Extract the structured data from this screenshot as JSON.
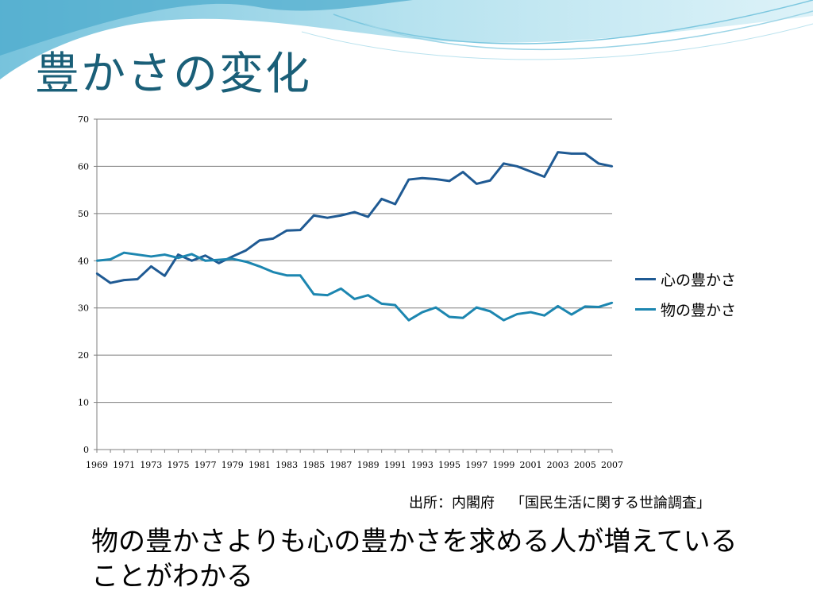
{
  "slide": {
    "title": "豊かさの変化",
    "source_prefix": "出所：内閣府",
    "source_survey": "「国民生活に関する世論調査」",
    "conclusion": "物の豊かさよりも心の豊かさを求める人が増えていることがわかる"
  },
  "colors": {
    "title": "#1a5f78",
    "series_heart": "#1f5a93",
    "series_material": "#1c86b0",
    "gridline": "#7f7f7f"
  },
  "chart_data": {
    "type": "line",
    "x": [
      1969,
      1970,
      1971,
      1972,
      1973,
      1974,
      1975,
      1976,
      1977,
      1978,
      1979,
      1980,
      1981,
      1982,
      1983,
      1984,
      1985,
      1986,
      1987,
      1988,
      1989,
      1990,
      1991,
      1992,
      1993,
      1994,
      1995,
      1996,
      1997,
      1998,
      1999,
      2000,
      2001,
      2002,
      2003,
      2004,
      2005,
      2006,
      2007
    ],
    "x_tick_labels": [
      "1969",
      "1971",
      "1973",
      "1975",
      "1977",
      "1979",
      "1981",
      "1983",
      "1985",
      "1987",
      "1989",
      "1991",
      "1993",
      "1995",
      "1997",
      "1999",
      "2001",
      "2003",
      "2005",
      "2007"
    ],
    "ylim": [
      0,
      70
    ],
    "y_ticks": [
      0,
      10,
      20,
      30,
      40,
      50,
      60,
      70
    ],
    "grid": true,
    "legend_position": "right",
    "series": [
      {
        "name": "心の豊かさ",
        "color": "#1f5a93",
        "values": [
          37.3,
          35.3,
          35.9,
          36.1,
          38.8,
          36.8,
          41.3,
          40.0,
          41.1,
          39.5,
          40.9,
          42.2,
          44.3,
          44.7,
          46.4,
          46.5,
          49.6,
          49.1,
          49.6,
          50.3,
          49.3,
          53.1,
          52.0,
          57.2,
          57.5,
          57.3,
          56.9,
          58.8,
          56.3,
          57.0,
          60.6,
          60.0,
          58.9,
          57.8,
          63.0,
          62.7,
          62.7,
          60.6,
          60.0
        ]
      },
      {
        "name": "物の豊かさ",
        "color": "#1c86b0",
        "values": [
          40.0,
          40.3,
          41.7,
          41.3,
          40.9,
          41.3,
          40.6,
          41.4,
          40.0,
          40.2,
          40.4,
          39.8,
          38.8,
          37.6,
          36.9,
          36.9,
          32.9,
          32.7,
          34.1,
          31.9,
          32.7,
          30.9,
          30.6,
          27.4,
          29.1,
          30.1,
          28.1,
          27.9,
          30.1,
          29.3,
          27.4,
          28.7,
          29.1,
          28.4,
          30.4,
          28.6,
          30.3,
          30.2,
          31.1
        ]
      }
    ]
  }
}
